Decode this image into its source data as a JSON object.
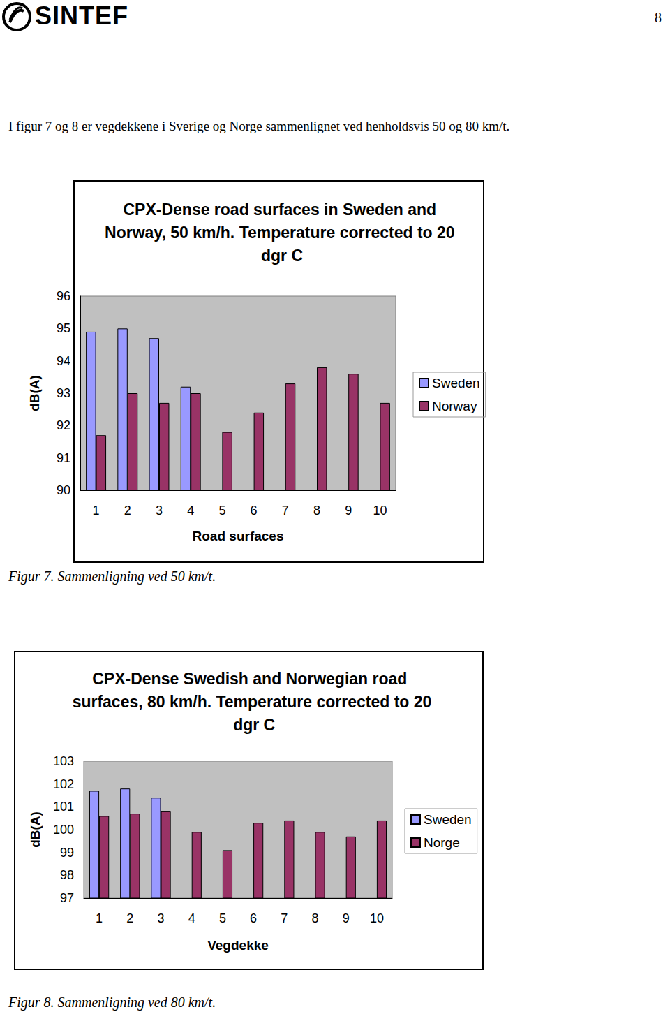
{
  "page": {
    "logo": "SINTEF",
    "page_number": "8",
    "intro": "I figur 7 og 8 er vegdekkene i Sverige og Norge sammenlignet ved henholdsvis 50 og 80 km/t.",
    "captions": [
      "Figur 7. Sammenligning ved 50 km/t.",
      "Figur 8. Sammenligning ved 80 km/t."
    ]
  },
  "chart_data": [
    {
      "type": "bar",
      "title": "CPX-Dense road surfaces in Sweden and Norway, 50 km/h. Temperature corrected to 20 dgr C",
      "x_label": "Road surfaces",
      "y_label": "dB(A)",
      "categories": [
        "1",
        "2",
        "3",
        "4",
        "5",
        "6",
        "7",
        "8",
        "9",
        "10"
      ],
      "series": [
        {
          "name": "Sweden",
          "color": "#9999ff",
          "values": [
            94.9,
            95.0,
            94.7,
            93.2,
            null,
            null,
            null,
            null,
            null,
            null
          ]
        },
        {
          "name": "Norway",
          "color": "#993366",
          "values": [
            91.7,
            93.0,
            92.7,
            93.0,
            91.8,
            92.4,
            93.3,
            93.8,
            93.6,
            92.7
          ]
        }
      ],
      "ylim": [
        90,
        96
      ],
      "yticks": [
        90,
        91,
        92,
        93,
        94,
        95,
        96
      ],
      "grid": false,
      "legend": "right"
    },
    {
      "type": "bar",
      "title": "CPX-Dense Swedish and Norwegian road surfaces, 80 km/h. Temperature corrected to 20 dgr C",
      "x_label": "Vegdekke",
      "y_label": "dB(A)",
      "categories": [
        "1",
        "2",
        "3",
        "4",
        "5",
        "6",
        "7",
        "8",
        "9",
        "10"
      ],
      "series": [
        {
          "name": "Sweden",
          "color": "#9999ff",
          "values": [
            101.7,
            101.8,
            101.4,
            null,
            null,
            null,
            null,
            null,
            null,
            null
          ]
        },
        {
          "name": "Norge",
          "color": "#993366",
          "values": [
            100.6,
            100.7,
            100.8,
            99.9,
            99.1,
            100.3,
            100.4,
            99.9,
            99.7,
            100.4
          ]
        }
      ],
      "ylim": [
        97,
        103
      ],
      "yticks": [
        97,
        98,
        99,
        100,
        101,
        102,
        103
      ],
      "grid": false,
      "legend": "right"
    }
  ]
}
